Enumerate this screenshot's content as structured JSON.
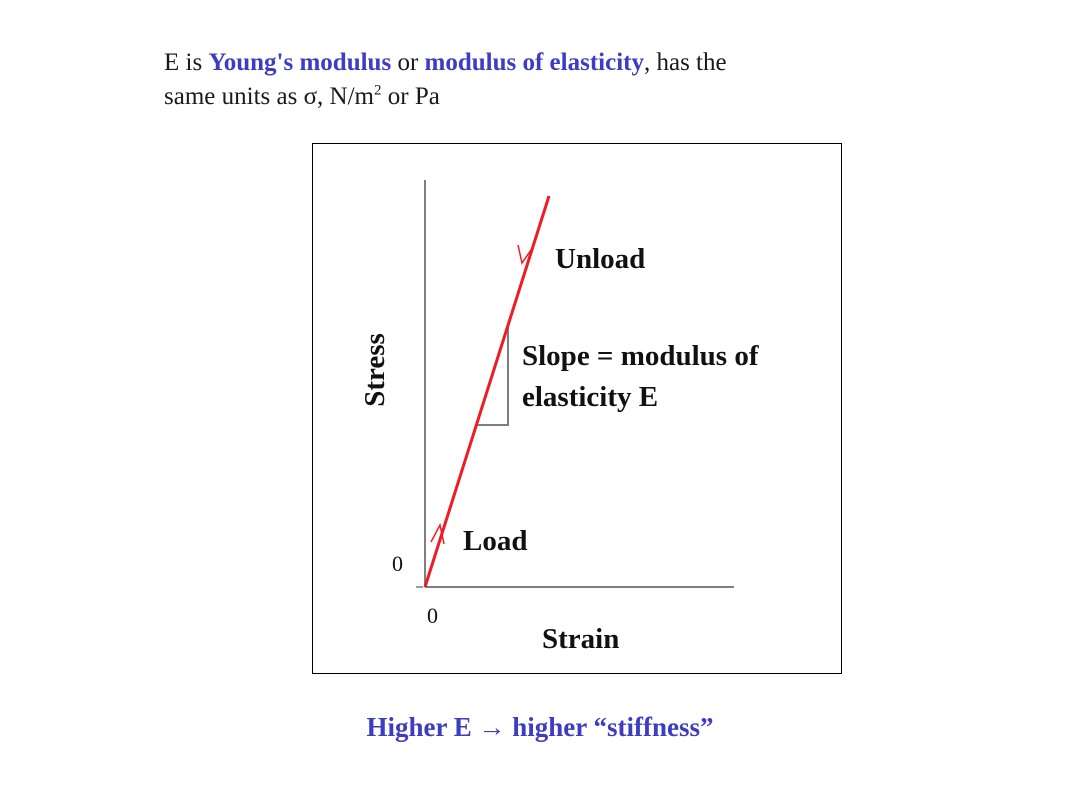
{
  "intro": {
    "p1": "E is ",
    "kw1": "Young's modulus",
    "p2": " or ",
    "kw2": "modulus of elasticity",
    "p3": ", has the",
    "line2_before": "same units as σ, N/m",
    "line2_sup": "2",
    "line2_after": " or Pa"
  },
  "diagram": {
    "y_axis_label": "Stress",
    "x_axis_label": "Strain",
    "origin_x_tick": "0",
    "origin_y_tick": "0",
    "unload_label": "Unload",
    "load_label": "Load",
    "slope_line1": "Slope = modulus of",
    "slope_line2": "elasticity E",
    "line_color": "#ee1c25",
    "axis_color": "#7f7f7f"
  },
  "caption": "Higher E → higher “stiffness”"
}
